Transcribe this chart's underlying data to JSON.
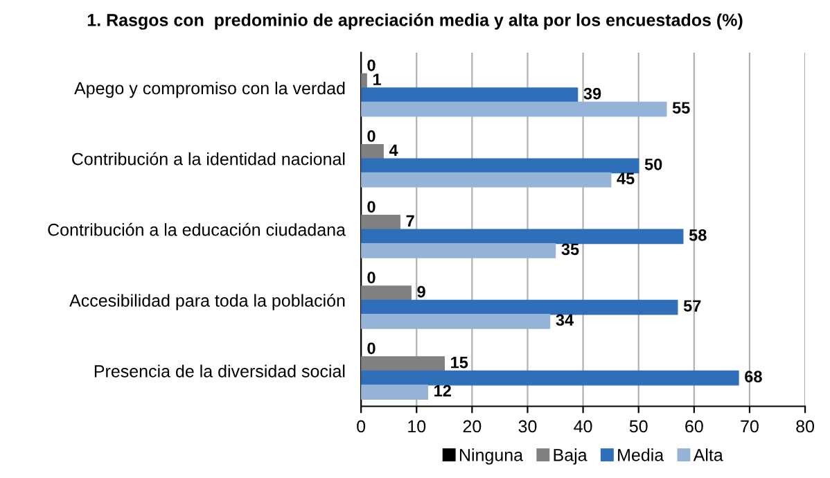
{
  "chart_data": {
    "type": "bar",
    "orientation": "horizontal",
    "title": "1. Rasgos con  predominio de apreciación media y alta por los encuestados (%)",
    "categories": [
      "Apego y compromiso con la verdad",
      "Contribución a la identidad nacional",
      "Contribución a la educación ciudadana",
      "Accesibilidad para toda la población",
      "Presencia de la diversidad social"
    ],
    "series": [
      {
        "name": "Ninguna",
        "color": "#000000",
        "values": [
          0,
          0,
          0,
          0,
          0
        ]
      },
      {
        "name": "Baja",
        "color": "#808080",
        "values": [
          1,
          4,
          7,
          9,
          15
        ]
      },
      {
        "name": "Media",
        "color": "#2f6fba",
        "values": [
          39,
          50,
          58,
          57,
          68
        ]
      },
      {
        "name": "Alta",
        "color": "#95b3d7",
        "values": [
          55,
          45,
          35,
          34,
          12
        ]
      }
    ],
    "xlim": [
      0,
      80
    ],
    "xticks": [
      0,
      10,
      20,
      30,
      40,
      50,
      60,
      70,
      80
    ],
    "grid": "x",
    "legend": "bottom",
    "data_labels": true
  }
}
